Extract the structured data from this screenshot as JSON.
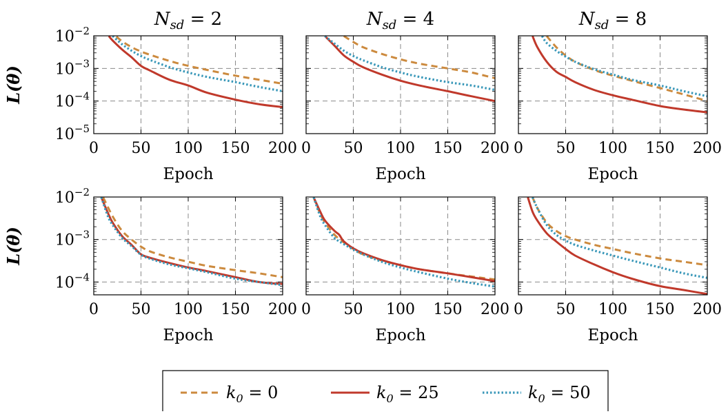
{
  "chart_data": [
    {
      "type": "line",
      "title": "N_sd = 2",
      "xlabel": "Epoch",
      "ylabel": "L(θ)",
      "xlim": [
        0,
        200
      ],
      "ylim": [
        1e-05,
        0.01
      ],
      "yscale": "log",
      "grid": true,
      "x_ticks": [
        "0",
        "50",
        "100",
        "150",
        "200"
      ],
      "y_ticks": [
        "10^-5",
        "10^-4",
        "10^-3",
        "10^-2"
      ],
      "series": [
        {
          "name": "k0 = 0",
          "x": [
            24,
            30,
            40,
            50,
            60,
            80,
            100,
            120,
            150,
            175,
            200
          ],
          "y": [
            0.0095,
            0.0068,
            0.0045,
            0.0033,
            0.0026,
            0.0017,
            0.0012,
            0.0009,
            0.0006,
            0.00045,
            0.00034
          ]
        },
        {
          "name": "k0 = 25",
          "x": [
            16,
            20,
            30,
            40,
            50,
            60,
            80,
            100,
            120,
            150,
            175,
            200
          ],
          "y": [
            0.0098,
            0.0072,
            0.0038,
            0.0022,
            0.0012,
            0.00085,
            0.00045,
            0.0003,
            0.00018,
            0.00011,
            8e-05,
            6.5e-05
          ]
        },
        {
          "name": "k0 = 50",
          "x": [
            20,
            30,
            40,
            50,
            60,
            80,
            100,
            120,
            150,
            175,
            200
          ],
          "y": [
            0.0098,
            0.0055,
            0.0035,
            0.0024,
            0.0018,
            0.0011,
            0.00075,
            0.00055,
            0.00038,
            0.00027,
            0.0002
          ]
        }
      ]
    },
    {
      "type": "line",
      "title": "N_sd = 4",
      "xlabel": "Epoch",
      "xlim": [
        0,
        200
      ],
      "ylim": [
        1e-05,
        0.01
      ],
      "yscale": "log",
      "grid": true,
      "x_ticks": [
        "0",
        "50",
        "100",
        "150",
        "200"
      ],
      "series": [
        {
          "name": "k0 = 0",
          "x": [
            40,
            50,
            60,
            80,
            100,
            120,
            150,
            175,
            200
          ],
          "y": [
            0.0098,
            0.0065,
            0.0045,
            0.0028,
            0.0019,
            0.0014,
            0.001,
            0.00075,
            0.0005
          ]
        },
        {
          "name": "k0 = 25",
          "x": [
            20,
            30,
            40,
            50,
            60,
            80,
            100,
            120,
            150,
            175,
            200
          ],
          "y": [
            0.0098,
            0.005,
            0.0025,
            0.0016,
            0.0011,
            0.00065,
            0.00042,
            0.0003,
            0.0002,
            0.00014,
            0.0001
          ]
        },
        {
          "name": "k0 = 50",
          "x": [
            20,
            30,
            40,
            50,
            60,
            80,
            100,
            120,
            150,
            175,
            200
          ],
          "y": [
            0.0098,
            0.0058,
            0.0035,
            0.0024,
            0.0018,
            0.0011,
            0.00075,
            0.00055,
            0.00038,
            0.0003,
            0.00022
          ]
        }
      ]
    },
    {
      "type": "line",
      "title": "N_sd = 8",
      "xlabel": "Epoch",
      "xlim": [
        0,
        200
      ],
      "ylim": [
        1e-05,
        0.01
      ],
      "yscale": "log",
      "grid": true,
      "x_ticks": [
        "0",
        "50",
        "100",
        "150",
        "200"
      ],
      "series": [
        {
          "name": "k0 = 0",
          "x": [
            30,
            40,
            50,
            60,
            80,
            100,
            120,
            150,
            175,
            200
          ],
          "y": [
            0.0098,
            0.0045,
            0.0025,
            0.0016,
            0.0009,
            0.0006,
            0.00042,
            0.00025,
            0.00016,
            0.0001
          ]
        },
        {
          "name": "k0 = 25",
          "x": [
            15,
            20,
            30,
            40,
            50,
            60,
            80,
            100,
            120,
            150,
            175,
            200
          ],
          "y": [
            0.0098,
            0.0045,
            0.0016,
            0.0008,
            0.00055,
            0.00038,
            0.00022,
            0.00015,
            0.00011,
            7e-05,
            5.5e-05,
            4.5e-05
          ]
        },
        {
          "name": "k0 = 50",
          "x": [
            25,
            30,
            40,
            50,
            60,
            80,
            100,
            120,
            150,
            175,
            200
          ],
          "y": [
            0.0098,
            0.006,
            0.0035,
            0.0023,
            0.0016,
            0.00095,
            0.00065,
            0.00045,
            0.0003,
            0.0002,
            0.00014
          ]
        }
      ]
    },
    {
      "type": "line",
      "xlabel": "Epoch",
      "ylabel": "L(θ)",
      "xlim": [
        0,
        200
      ],
      "ylim": [
        5e-05,
        0.01
      ],
      "yscale": "log",
      "grid": true,
      "x_ticks": [
        "0",
        "50",
        "100",
        "150",
        "200"
      ],
      "y_ticks": [
        "10^-4",
        "10^-3",
        "10^-2"
      ],
      "series": [
        {
          "name": "k0 = 0",
          "x": [
            10,
            20,
            30,
            40,
            50,
            60,
            80,
            100,
            120,
            150,
            175,
            200
          ],
          "y": [
            0.0098,
            0.0035,
            0.0016,
            0.001,
            0.00068,
            0.00052,
            0.00038,
            0.0003,
            0.00024,
            0.00019,
            0.00016,
            0.00013
          ]
        },
        {
          "name": "k0 = 25",
          "x": [
            8,
            15,
            20,
            30,
            40,
            50,
            60,
            80,
            100,
            120,
            150,
            175,
            200
          ],
          "y": [
            0.0098,
            0.0042,
            0.0025,
            0.0012,
            0.00075,
            0.00045,
            0.00037,
            0.00028,
            0.00022,
            0.00018,
            0.00013,
            0.0001,
            9e-05
          ]
        },
        {
          "name": "k0 = 50",
          "x": [
            8,
            15,
            20,
            30,
            40,
            50,
            60,
            80,
            100,
            120,
            150,
            175,
            200
          ],
          "y": [
            0.0098,
            0.0035,
            0.0022,
            0.0011,
            0.0007,
            0.00044,
            0.00035,
            0.00026,
            0.00021,
            0.00017,
            0.00012,
            0.0001,
            8.5e-05
          ]
        }
      ]
    },
    {
      "type": "line",
      "xlabel": "Epoch",
      "xlim": [
        0,
        200
      ],
      "ylim": [
        5e-05,
        0.01
      ],
      "yscale": "log",
      "grid": true,
      "x_ticks": [
        "0",
        "50",
        "100",
        "150",
        "200"
      ],
      "series": [
        {
          "name": "k0 = 0",
          "x": [
            8,
            15,
            20,
            30,
            40,
            50,
            60,
            80,
            100,
            120,
            150,
            175,
            200
          ],
          "y": [
            0.0098,
            0.004,
            0.0025,
            0.0013,
            0.00085,
            0.0006,
            0.00045,
            0.00032,
            0.00025,
            0.0002,
            0.00016,
            0.000135,
            0.000115
          ]
        },
        {
          "name": "k0 = 25",
          "x": [
            8,
            15,
            20,
            30,
            35,
            40,
            50,
            60,
            80,
            100,
            120,
            150,
            175,
            200
          ],
          "y": [
            0.0098,
            0.0045,
            0.0028,
            0.0016,
            0.0013,
            0.0009,
            0.00062,
            0.00048,
            0.00033,
            0.00025,
            0.0002,
            0.00016,
            0.00013,
            0.000105
          ]
        },
        {
          "name": "k0 = 50",
          "x": [
            8,
            15,
            20,
            30,
            40,
            50,
            60,
            80,
            100,
            120,
            150,
            175,
            200
          ],
          "y": [
            0.0098,
            0.0035,
            0.0022,
            0.0011,
            0.00078,
            0.00058,
            0.00045,
            0.0003,
            0.00022,
            0.00017,
            0.00012,
            9.5e-05,
            7.8e-05
          ]
        }
      ]
    },
    {
      "type": "line",
      "xlabel": "Epoch",
      "xlim": [
        0,
        200
      ],
      "ylim": [
        5e-05,
        0.01
      ],
      "yscale": "log",
      "grid": true,
      "x_ticks": [
        "0",
        "50",
        "100",
        "150",
        "200"
      ],
      "series": [
        {
          "name": "k0 = 0",
          "x": [
            15,
            20,
            30,
            40,
            50,
            60,
            80,
            100,
            120,
            150,
            175,
            200
          ],
          "y": [
            0.0098,
            0.0055,
            0.0025,
            0.0016,
            0.0012,
            0.001,
            0.00075,
            0.0006,
            0.00048,
            0.00036,
            0.0003,
            0.00025
          ]
        },
        {
          "name": "k0 = 25",
          "x": [
            10,
            15,
            20,
            30,
            40,
            50,
            60,
            80,
            100,
            120,
            150,
            175,
            200
          ],
          "y": [
            0.0098,
            0.0045,
            0.0028,
            0.0014,
            0.0009,
            0.0006,
            0.00042,
            0.00026,
            0.00017,
            0.00012,
            8e-05,
            6.5e-05,
            5.2e-05
          ]
        },
        {
          "name": "k0 = 50",
          "x": [
            15,
            20,
            30,
            40,
            50,
            60,
            80,
            100,
            120,
            150,
            175,
            200
          ],
          "y": [
            0.0098,
            0.0055,
            0.0022,
            0.0013,
            0.00095,
            0.00075,
            0.00055,
            0.00042,
            0.00032,
            0.00022,
            0.00016,
            0.000125
          ]
        }
      ]
    }
  ],
  "legend": {
    "placement": "bottom-center",
    "entries": [
      "k0 = 0",
      "k0 = 25",
      "k0 = 50"
    ]
  },
  "colors": {
    "k0_0": "#cc8a3e",
    "k0_25": "#c0392b",
    "k0_50": "#3a98b9",
    "grid": "#8a8a8a",
    "axis": "#000000"
  }
}
